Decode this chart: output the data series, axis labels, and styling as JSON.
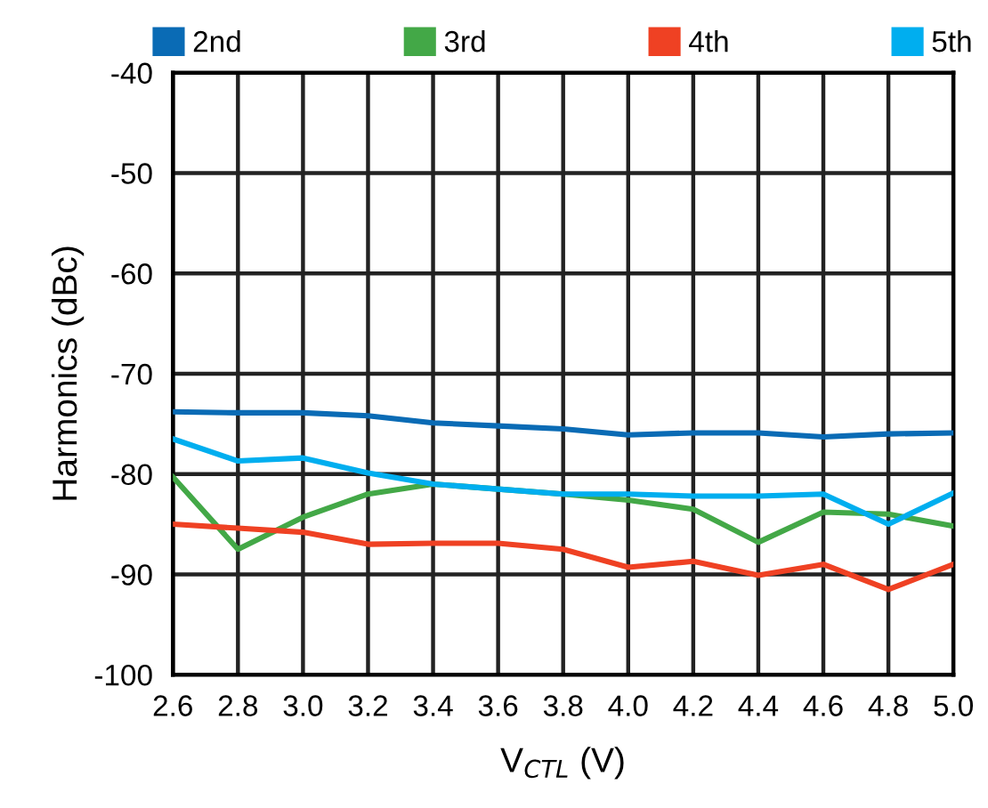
{
  "chart_data": {
    "type": "line",
    "xlabel": "V$_{CTL}$ (V)",
    "ylabel": "Harmonics (dBc)",
    "x": [
      2.6,
      2.8,
      3.0,
      3.2,
      3.4,
      3.6,
      3.8,
      4.0,
      4.2,
      4.4,
      4.6,
      4.8,
      5.0
    ],
    "series": [
      {
        "name": "2nd",
        "color": "#0a6bb5",
        "values": [
          -73.8,
          -73.9,
          -73.9,
          -74.2,
          -74.9,
          -75.2,
          -75.5,
          -76.1,
          -75.9,
          -75.9,
          -76.3,
          -76.0,
          -75.9
        ]
      },
      {
        "name": "3rd",
        "color": "#43a847",
        "values": [
          -80.3,
          -87.5,
          -84.3,
          -82.0,
          -81.0,
          -81.5,
          -82.0,
          -82.6,
          -83.5,
          -86.8,
          -83.8,
          -84.0,
          -85.2
        ]
      },
      {
        "name": "4th",
        "color": "#ef4123",
        "values": [
          -85.0,
          -85.4,
          -85.8,
          -87.0,
          -86.9,
          -86.9,
          -87.5,
          -89.3,
          -88.7,
          -90.1,
          -89.0,
          -91.5,
          -89.0
        ]
      },
      {
        "name": "5th",
        "color": "#00aeef",
        "values": [
          -76.5,
          -78.7,
          -78.4,
          -79.9,
          -81.0,
          -81.5,
          -82.0,
          -82.0,
          -82.2,
          -82.2,
          -82.0,
          -85.0,
          -81.9
        ]
      }
    ],
    "xlim": [
      2.6,
      5.0
    ],
    "ylim": [
      -100,
      -40
    ],
    "xticks": [
      {
        "value": 2.6,
        "label": "2.6"
      },
      {
        "value": 2.8,
        "label": "2.8"
      },
      {
        "value": 3.0,
        "label": "3.0"
      },
      {
        "value": 3.2,
        "label": "3.2"
      },
      {
        "value": 3.4,
        "label": "3.4"
      },
      {
        "value": 3.6,
        "label": "3.6"
      },
      {
        "value": 3.8,
        "label": "3.8"
      },
      {
        "value": 4.0,
        "label": "4.0"
      },
      {
        "value": 4.2,
        "label": "4.2"
      },
      {
        "value": 4.4,
        "label": "4.4"
      },
      {
        "value": 4.6,
        "label": "4.6"
      },
      {
        "value": 4.8,
        "label": "4.8"
      },
      {
        "value": 5.0,
        "label": "5.0"
      }
    ],
    "yticks": [
      -100,
      -90,
      -80,
      -70,
      -60,
      -50,
      -40
    ],
    "grid": true,
    "legend": "top",
    "marker": "none",
    "line_style": "solid"
  }
}
